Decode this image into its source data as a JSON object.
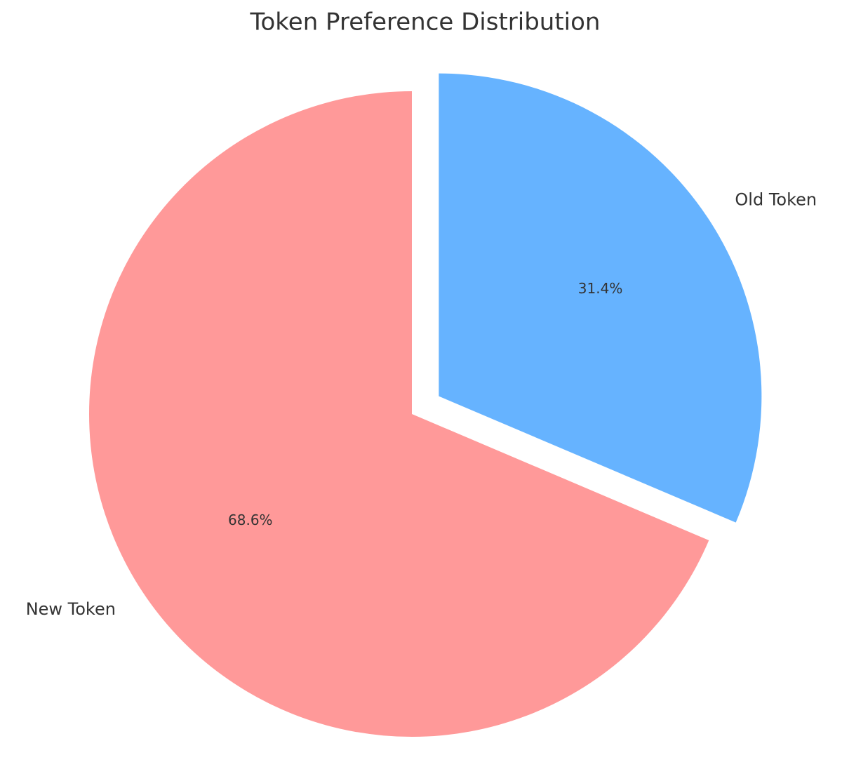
{
  "chart_data": {
    "type": "pie",
    "title": "Token Preference Distribution",
    "categories": [
      "New Token",
      "Old Token"
    ],
    "values": [
      68.6,
      31.4
    ],
    "value_labels": [
      "68.6%",
      "31.4%"
    ],
    "colors": [
      "#ff9999",
      "#66b3ff"
    ],
    "explode": [
      0,
      0.1
    ],
    "start_angle": 90
  }
}
